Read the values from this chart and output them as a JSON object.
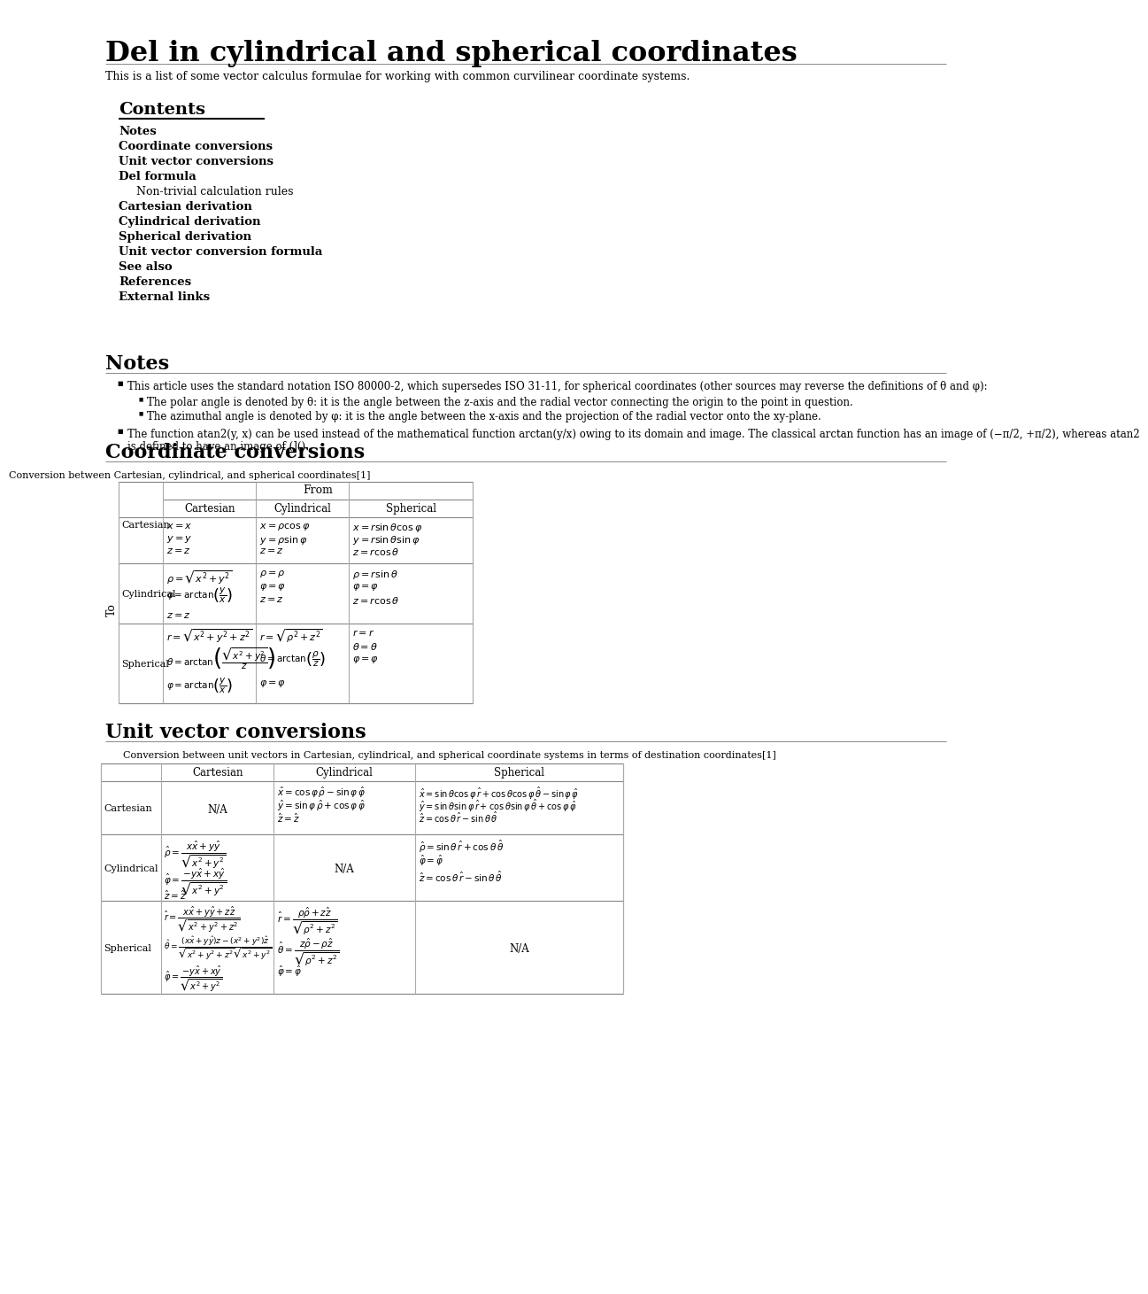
{
  "title": "Del in cylindrical and spherical coordinates",
  "subtitle": "This is a list of some vector calculus formulae for working with common curvilinear coordinate systems.",
  "bg_color": "#ffffff",
  "text_color": "#000000",
  "contents_header": "Contents",
  "contents_items": [
    [
      "Notes",
      false
    ],
    [
      "Coordinate conversions",
      false
    ],
    [
      "Unit vector conversions",
      false
    ],
    [
      "Del formula",
      false
    ],
    [
      "Non-trivial calculation rules",
      true
    ],
    [
      "Cartesian derivation",
      false
    ],
    [
      "Cylindrical derivation",
      false
    ],
    [
      "Spherical derivation",
      false
    ],
    [
      "Unit vector conversion formula",
      false
    ],
    [
      "See also",
      false
    ],
    [
      "References",
      false
    ],
    [
      "External links",
      false
    ]
  ],
  "notes_header": "Notes",
  "coord_conv_header": "Coordinate conversions",
  "coord_conv_caption": "Conversion between Cartesian, cylindrical, and spherical coordinates[1]",
  "unit_vec_header": "Unit vector conversions",
  "unit_vec_caption": "Conversion between unit vectors in Cartesian, cylindrical, and spherical coordinate systems in terms of destination coordinates[1]"
}
